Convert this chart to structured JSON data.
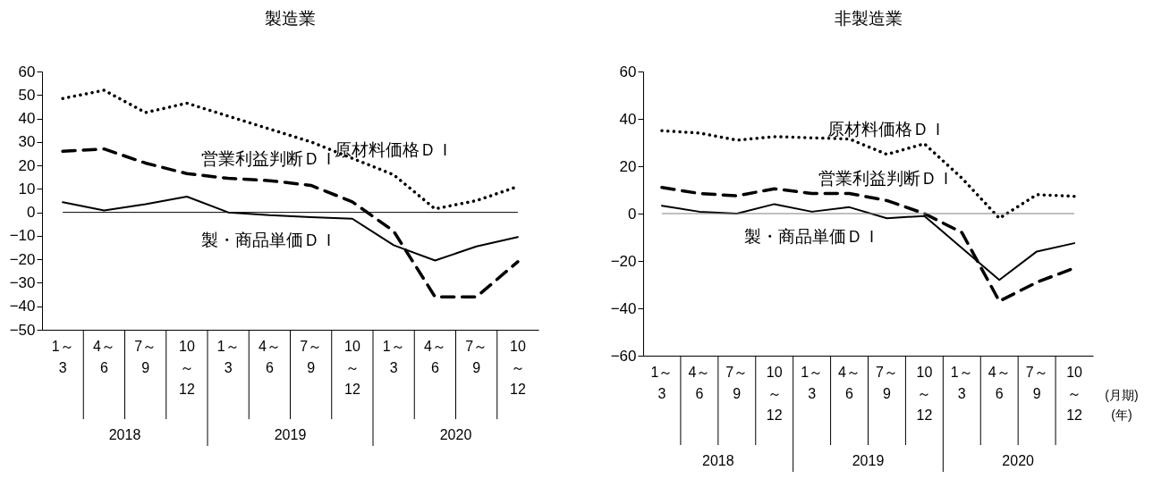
{
  "chart_data": [
    {
      "type": "line",
      "title": "製造業",
      "categories": [
        "1～3",
        "4～6",
        "7～9",
        "10～12",
        "1～3",
        "4～6",
        "7～9",
        "10～12",
        "1～3",
        "4～6",
        "7～9",
        "10～12"
      ],
      "series": [
        {
          "name": "原材料価格ＤＩ",
          "color": "#000000",
          "line_style": "dotted",
          "values": [
            48.5,
            52,
            42.5,
            46.5,
            41,
            35.5,
            30,
            23,
            16,
            1.5,
            5,
            11
          ]
        },
        {
          "name": "営業利益判断ＤＩ",
          "color": "#000000",
          "line_style": "dashed",
          "values": [
            26,
            27,
            21,
            16.5,
            14.5,
            13.5,
            11.5,
            4.5,
            -8,
            -36,
            -36,
            -21
          ]
        },
        {
          "name": "製・商品単価ＤＩ",
          "color": "#000000",
          "line_style": "solid",
          "values": [
            4.3,
            0.8,
            3.5,
            6.7,
            0,
            -1.2,
            -2,
            -2.7,
            -14,
            -20.5,
            -14.5,
            -10.5
          ]
        }
      ],
      "ylim": [
        -50,
        60
      ],
      "yticks": [
        -50,
        -40,
        -30,
        -20,
        -10,
        0,
        10,
        20,
        30,
        40,
        50,
        60
      ],
      "ref_lines": [
        {
          "axis": "y",
          "value": 0,
          "color": "#000000"
        }
      ],
      "annotations": [
        "2018",
        "2019",
        "2020"
      ]
    },
    {
      "type": "line",
      "title": "非製造業",
      "categories": [
        "1～3",
        "4～6",
        "7～9",
        "10～12",
        "1～3",
        "4～6",
        "7～9",
        "10～12",
        "1～3",
        "4～6",
        "7～9",
        "10～12"
      ],
      "series": [
        {
          "name": "原材料価格ＤＩ",
          "color": "#000000",
          "line_style": "dotted",
          "values": [
            35,
            34,
            31,
            32.5,
            32,
            31.5,
            25,
            29.5,
            15,
            -2,
            8,
            7.3
          ]
        },
        {
          "name": "営業利益判断ＤＩ",
          "color": "#000000",
          "line_style": "dashed",
          "values": [
            11,
            8.5,
            7.5,
            10.5,
            8.5,
            8.5,
            5.5,
            0,
            -8,
            -37,
            -29,
            -23
          ]
        },
        {
          "name": "製・商品単価ＤＩ",
          "color": "#000000",
          "line_style": "solid",
          "values": [
            3.3,
            0.8,
            0,
            4,
            0.8,
            2.7,
            -2,
            -1,
            -14.5,
            -28,
            -16,
            -12.5
          ]
        }
      ],
      "ylim": [
        -60,
        60
      ],
      "yticks": [
        -60,
        -40,
        -20,
        0,
        20,
        40,
        60
      ],
      "ref_lines": [
        {
          "axis": "y",
          "value": 0,
          "color": "#808080"
        }
      ],
      "annotations": [
        "2018",
        "2019",
        "2020",
        "(月期)",
        "(年)"
      ]
    }
  ]
}
